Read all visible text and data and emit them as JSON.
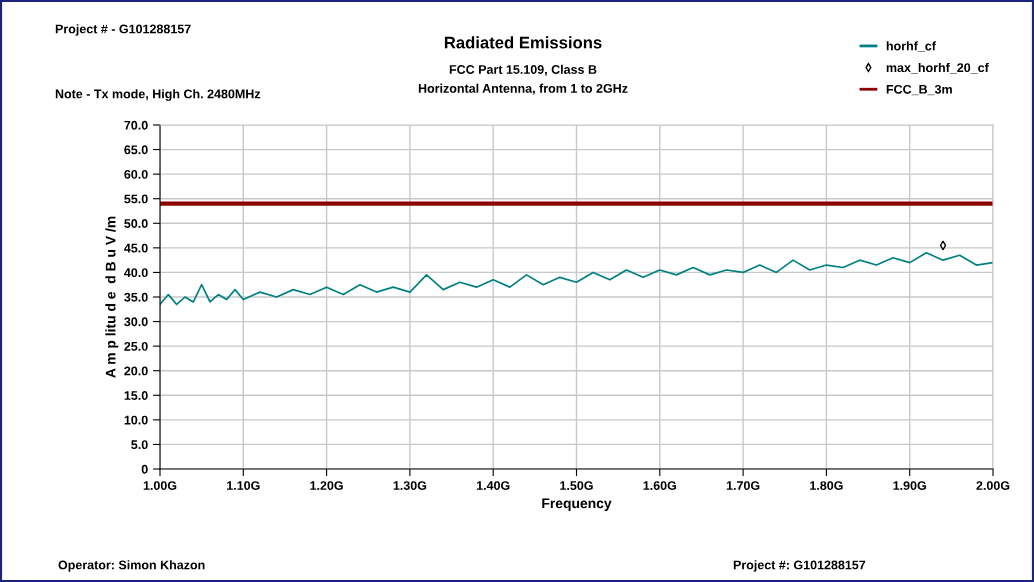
{
  "chart_data": {
    "type": "line",
    "title": "Radiated Emissions",
    "subtitle": "FCC Part 15.109, Class B\nHorizontal Antenna, from 1 to 2GHz",
    "xlabel": "Frequency",
    "ylabel": "A m p litu d e  d B u V /m",
    "annotations": [
      "Project # - G101288157",
      "Note - Tx mode, High Ch. 2480MHz",
      "Operator: Simon Khazon",
      "Project #: G101288157"
    ],
    "xlim": [
      1.0,
      2.0
    ],
    "ylim": [
      0,
      70
    ],
    "xticks": [
      {
        "value": 1.0,
        "label": "1.00G"
      },
      {
        "value": 1.1,
        "label": "1.10G"
      },
      {
        "value": 1.2,
        "label": "1.20G"
      },
      {
        "value": 1.3,
        "label": "1.30G"
      },
      {
        "value": 1.4,
        "label": "1.40G"
      },
      {
        "value": 1.5,
        "label": "1.50G"
      },
      {
        "value": 1.6,
        "label": "1.60G"
      },
      {
        "value": 1.7,
        "label": "1.70G"
      },
      {
        "value": 1.8,
        "label": "1.80G"
      },
      {
        "value": 1.9,
        "label": "1.90G"
      },
      {
        "value": 2.0,
        "label": "2.00G"
      }
    ],
    "yticks": [
      {
        "value": 0,
        "label": "0"
      },
      {
        "value": 5,
        "label": "5.0"
      },
      {
        "value": 10,
        "label": "10.0"
      },
      {
        "value": 15,
        "label": "15.0"
      },
      {
        "value": 20,
        "label": "20.0"
      },
      {
        "value": 25,
        "label": "25.0"
      },
      {
        "value": 30,
        "label": "30.0"
      },
      {
        "value": 35,
        "label": "35.0"
      },
      {
        "value": 40,
        "label": "40.0"
      },
      {
        "value": 45,
        "label": "45.0"
      },
      {
        "value": 50,
        "label": "50.0"
      },
      {
        "value": 55,
        "label": "55.0"
      },
      {
        "value": 60,
        "label": "60.0"
      },
      {
        "value": 65,
        "label": "65.0"
      },
      {
        "value": 70,
        "label": "70.0"
      }
    ],
    "grid": true,
    "legend": "top right",
    "series": [
      {
        "name": "horhf_cf",
        "color": "#008080",
        "marker": "none",
        "x": [
          1.0,
          1.01,
          1.02,
          1.03,
          1.04,
          1.05,
          1.06,
          1.07,
          1.08,
          1.09,
          1.1,
          1.12,
          1.14,
          1.16,
          1.18,
          1.2,
          1.22,
          1.24,
          1.26,
          1.28,
          1.3,
          1.32,
          1.34,
          1.36,
          1.38,
          1.4,
          1.42,
          1.44,
          1.46,
          1.48,
          1.5,
          1.52,
          1.54,
          1.56,
          1.58,
          1.6,
          1.62,
          1.64,
          1.66,
          1.68,
          1.7,
          1.72,
          1.74,
          1.76,
          1.78,
          1.8,
          1.82,
          1.84,
          1.86,
          1.88,
          1.9,
          1.92,
          1.94,
          1.96,
          1.98,
          2.0
        ],
        "values": [
          33.5,
          35.5,
          33.5,
          35,
          34,
          37.5,
          34,
          35.5,
          34.5,
          36.5,
          34.5,
          36,
          35,
          36.5,
          35.5,
          37,
          35.5,
          37.5,
          36,
          37,
          36,
          39.5,
          36.5,
          38,
          37,
          38.5,
          37,
          39.5,
          37.5,
          39,
          38,
          40,
          38.5,
          40.5,
          39,
          40.5,
          39.5,
          41,
          39.5,
          40.5,
          40,
          41.5,
          40,
          42.5,
          40.5,
          41.5,
          41,
          42.5,
          41.5,
          43,
          42,
          44,
          42.5,
          43.5,
          41.5,
          42
        ]
      },
      {
        "name": "max_horhf_20_cf",
        "type": "scatter",
        "color": "#000000",
        "marker": "diamond",
        "x": [
          1.94
        ],
        "values": [
          45.5
        ]
      },
      {
        "name": "FCC_B_3m",
        "color": "#8b0000",
        "marker": "none",
        "x": [
          1.0,
          2.0
        ],
        "values": [
          54,
          54
        ]
      }
    ]
  }
}
